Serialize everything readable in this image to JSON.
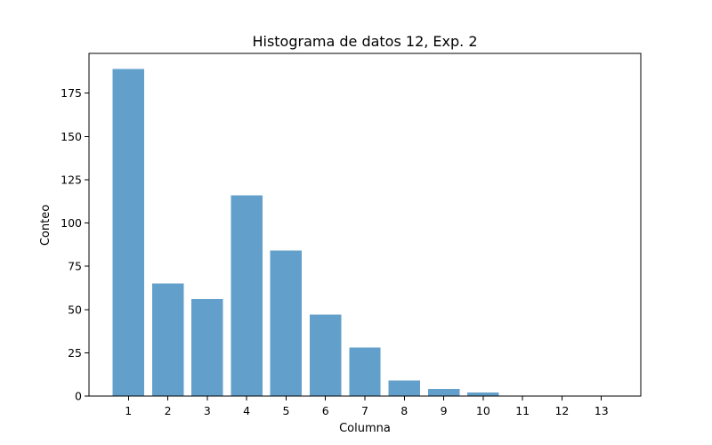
{
  "chart_data": {
    "type": "bar",
    "title": "Histograma de datos 12, Exp. 2",
    "xlabel": "Columna",
    "ylabel": "Conteo",
    "categories": [
      "1",
      "2",
      "3",
      "4",
      "5",
      "6",
      "7",
      "8",
      "9",
      "10",
      "11",
      "12",
      "13"
    ],
    "values": [
      189,
      65,
      56,
      116,
      84,
      47,
      28,
      9,
      4,
      2,
      0,
      0,
      0
    ],
    "ylim": [
      0,
      198
    ],
    "xlim": [
      0,
      14
    ],
    "yticks": [
      0,
      25,
      50,
      75,
      100,
      125,
      150,
      175
    ],
    "grid": false,
    "bar_color": "#62a0cb"
  }
}
